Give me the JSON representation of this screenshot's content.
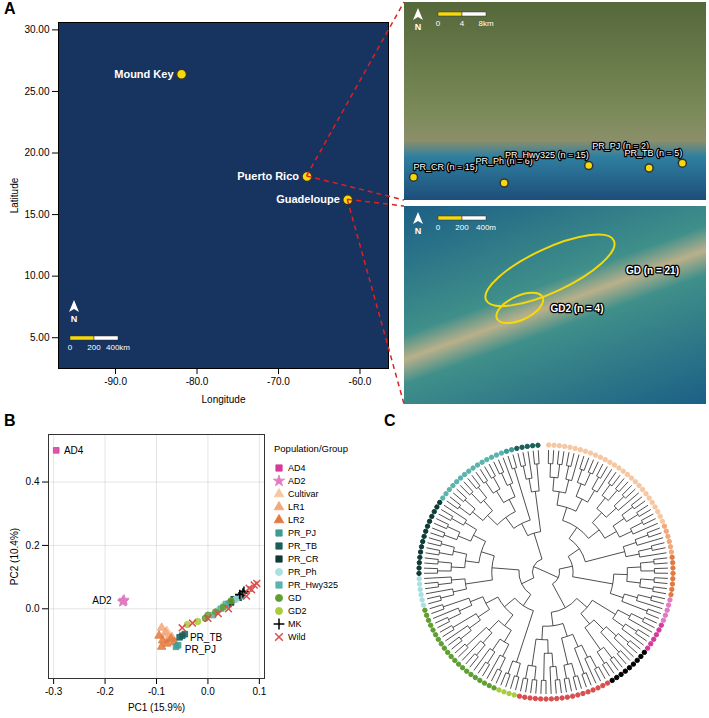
{
  "chart_data": [
    {
      "type": "map",
      "panel": "A",
      "x_label": "Longitude",
      "y_label": "Latitude",
      "xlim": [
        -97,
        -56.5
      ],
      "ylim": [
        2.5,
        30.6
      ],
      "xticks": [
        {
          "value": -90,
          "label": "-90.0"
        },
        {
          "value": -80,
          "label": "-80.0"
        },
        {
          "value": -70,
          "label": "-70.0"
        },
        {
          "value": -60,
          "label": "-60.0"
        }
      ],
      "yticks": [
        {
          "value": 5,
          "label": "5.00"
        },
        {
          "value": 10,
          "label": "10.00"
        },
        {
          "value": 15,
          "label": "15.00"
        },
        {
          "value": 20,
          "label": "20.00"
        },
        {
          "value": 25,
          "label": "25.00"
        },
        {
          "value": 30,
          "label": "30.00"
        }
      ],
      "color": "#f5d90a",
      "points": [
        {
          "name": "Mound Key",
          "x": -81.9,
          "y": 26.4
        },
        {
          "name": "Puerto Rico",
          "x": -66.5,
          "y": 18.1
        },
        {
          "name": "Guadeloupe",
          "x": -61.5,
          "y": 16.2
        }
      ],
      "scale_bar": [
        "0",
        "200",
        "400km"
      ],
      "north": "N",
      "insets": [
        {
          "of": "Puerto Rico",
          "xlim": [
            -67.2,
            -66.7
          ],
          "ylim": [
            17.93,
            18.1
          ],
          "sites": [
            {
              "name": "PR_CR (n = 15)",
              "x": -67.185,
              "y": 17.95
            },
            {
              "name": "PR_Ph (n = 6)",
              "x": -67.035,
              "y": 17.945
            },
            {
              "name": "PR_Hwy325 (n = 15)",
              "x": -66.895,
              "y": 17.96
            },
            {
              "name": "PR_PJ (n = 2)",
              "x": -66.795,
              "y": 17.958
            },
            {
              "name": "PR_TB (n = 5)",
              "x": -66.74,
              "y": 17.962
            }
          ],
          "scale_bar": [
            "0",
            "4",
            "8km"
          ],
          "north": "N"
        },
        {
          "of": "Guadeloupe",
          "xlim": [
            0,
            2400
          ],
          "ylim": [
            0,
            1600
          ],
          "regions": [
            {
              "label": "GD (n = 21)",
              "x": 1160,
              "y": 1080,
              "rx": 560,
              "ry": 176
            },
            {
              "label": "GD2 (n = 4)",
              "x": 920,
              "y": 776,
              "rx": 200,
              "ry": 96
            }
          ],
          "scale_bar": [
            "0",
            "200",
            "400m"
          ],
          "north": "N"
        }
      ]
    },
    {
      "type": "scatter",
      "panel": "B",
      "x_label": "PC1 (15.9%)",
      "y_label": "PC2 (10.4%)",
      "xlim": [
        -0.31,
        0.11
      ],
      "ylim": [
        -0.22,
        0.55
      ],
      "xticks": [
        -0.3,
        -0.2,
        -0.1,
        {
          "value": 0,
          "label": "0.0"
        },
        0.1
      ],
      "yticks": [
        {
          "value": 0,
          "label": "0.0"
        },
        0.2,
        0.4
      ],
      "grid": true,
      "legend": "right",
      "legend_title": "Population/Group",
      "series": [
        {
          "name": "AD4",
          "color": "#d63a9c",
          "marker": "square",
          "x": [
            -0.295
          ],
          "values": [
            0.5
          ]
        },
        {
          "name": "AD2",
          "color": "#e27ac0",
          "marker": "star",
          "x": [
            -0.165,
            -0.163,
            -0.166,
            -0.164
          ],
          "values": [
            0.025,
            0.028,
            0.022,
            0.024
          ]
        },
        {
          "name": "Cultivar",
          "color": "#f6c7a0",
          "marker": "triangle",
          "x": [
            -0.085,
            -0.08,
            -0.075
          ],
          "values": [
            -0.08,
            -0.07,
            -0.085
          ]
        },
        {
          "name": "LR1",
          "color": "#f3a77a",
          "marker": "triangle",
          "x": [
            -0.09,
            -0.082,
            -0.07,
            -0.078
          ],
          "values": [
            -0.06,
            -0.075,
            -0.09,
            -0.1
          ]
        },
        {
          "name": "LR2",
          "color": "#e27a3f",
          "marker": "triangle",
          "x": [
            -0.095,
            -0.088,
            -0.08,
            -0.072,
            -0.065,
            -0.09
          ],
          "values": [
            -0.085,
            -0.1,
            -0.11,
            -0.095,
            -0.105,
            -0.12
          ]
        },
        {
          "name": "PR_PJ",
          "color": "#3b9c96",
          "marker": "square",
          "x": [
            -0.062,
            -0.058
          ],
          "values": [
            -0.12,
            -0.115
          ]
        },
        {
          "name": "PR_TB",
          "color": "#1b5f59",
          "marker": "square",
          "x": [
            -0.055,
            -0.05,
            -0.045
          ],
          "values": [
            -0.09,
            -0.085,
            -0.08
          ]
        },
        {
          "name": "PR_CR",
          "color": "#0e3b36",
          "marker": "square",
          "x": [
            0.045,
            0.05,
            0.06,
            0.04
          ],
          "values": [
            0.02,
            0.03,
            0.035,
            0.015
          ]
        },
        {
          "name": "PR_Ph",
          "color": "#a9dfe0",
          "marker": "circle",
          "x": [
            0.02,
            0.03,
            0.055
          ],
          "values": [
            -0.005,
            0.01,
            0.03
          ]
        },
        {
          "name": "PR_Hwy325",
          "color": "#5bb3ad",
          "marker": "square",
          "x": [
            0.01,
            0.025,
            0.035,
            0.065
          ],
          "values": [
            -0.02,
            0.0,
            0.015,
            0.04
          ]
        },
        {
          "name": "GD",
          "color": "#5f9e32",
          "marker": "circle",
          "x": [
            -0.005,
            0.0,
            0.015,
            0.03,
            0.045
          ],
          "values": [
            -0.03,
            -0.02,
            -0.01,
            0.005,
            0.025
          ]
        },
        {
          "name": "GD2",
          "color": "#a8cc3a",
          "marker": "circle",
          "x": [
            -0.04,
            -0.02
          ],
          "values": [
            -0.05,
            -0.04
          ]
        },
        {
          "name": "MK",
          "color": "#000000",
          "marker": "plus",
          "x": [
            0.062,
            0.068,
            0.07
          ],
          "values": [
            0.045,
            0.05,
            0.055
          ]
        },
        {
          "name": "Wild",
          "color": "#d94f4f",
          "marker": "times",
          "x": [
            -0.05,
            -0.03,
            0.0,
            0.02,
            0.04,
            0.075,
            0.085,
            0.09,
            0.08,
            0.095
          ],
          "values": [
            -0.06,
            -0.045,
            -0.03,
            -0.015,
            0.0,
            0.04,
            0.06,
            0.075,
            0.065,
            0.08
          ]
        }
      ],
      "annotations": [
        {
          "text": "AD4",
          "x": -0.28,
          "y": 0.5
        },
        {
          "text": "AD2",
          "x": -0.225,
          "y": 0.025
        },
        {
          "text": "PR_TB",
          "x": -0.035,
          "y": -0.09
        },
        {
          "text": "PR_PJ",
          "x": -0.045,
          "y": -0.13
        }
      ]
    },
    {
      "type": "dendrogram",
      "panel": "C",
      "groups": [
        {
          "name": "Cultivar",
          "leaves": 28
        },
        {
          "name": "LR1",
          "leaves": 6
        },
        {
          "name": "LR2",
          "leaves": 8
        },
        {
          "name": "AD2",
          "leaves": 5
        },
        {
          "name": "AD4",
          "leaves": 6
        },
        {
          "name": "MK",
          "leaves": 9
        },
        {
          "name": "Wild",
          "leaves": 18
        },
        {
          "name": "GD2",
          "leaves": 4
        },
        {
          "name": "GD",
          "leaves": 21
        },
        {
          "name": "PR_Ph",
          "leaves": 6
        },
        {
          "name": "PR_CR",
          "leaves": 15
        },
        {
          "name": "PR_Hwy325",
          "leaves": 15
        },
        {
          "name": "PR_PJ",
          "leaves": 2
        },
        {
          "name": "PR_TB",
          "leaves": 5
        }
      ]
    }
  ]
}
